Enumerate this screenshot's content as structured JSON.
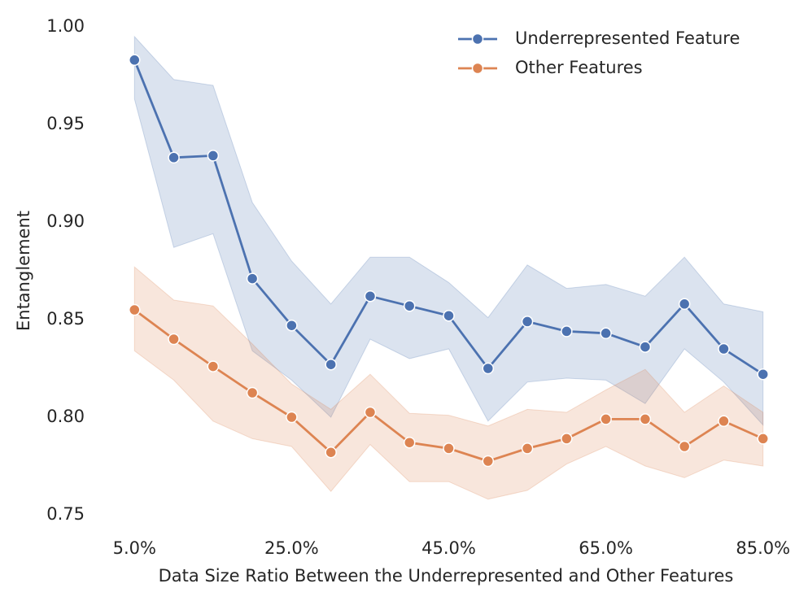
{
  "chart_data": {
    "type": "line",
    "x_label": "Data Size Ratio Between the Underrepresented and Other Features",
    "y_label": "Entanglement",
    "x": [
      5,
      10,
      15,
      20,
      25,
      30,
      35,
      40,
      45,
      50,
      55,
      60,
      65,
      70,
      75,
      80,
      85
    ],
    "xlim": [
      0,
      90
    ],
    "xticks": [
      {
        "value": 5,
        "label": "5.0%"
      },
      {
        "value": 25,
        "label": "25.0%"
      },
      {
        "value": 45,
        "label": "45.0%"
      },
      {
        "value": 65,
        "label": "65.0%"
      },
      {
        "value": 85,
        "label": "85.0%"
      }
    ],
    "ylim": [
      0.74,
      1.005
    ],
    "yticks": [
      {
        "value": 0.75,
        "label": "0.75"
      },
      {
        "value": 0.8,
        "label": "0.80"
      },
      {
        "value": 0.85,
        "label": "0.85"
      },
      {
        "value": 0.9,
        "label": "0.90"
      },
      {
        "value": 0.95,
        "label": "0.95"
      },
      {
        "value": 1.0,
        "label": "1.00"
      }
    ],
    "grid": false,
    "legend": "upper right",
    "series": [
      {
        "name": "Underrepresented Feature",
        "color": "#4c72b0",
        "values": [
          0.983,
          0.933,
          0.934,
          0.871,
          0.847,
          0.827,
          0.862,
          0.857,
          0.852,
          0.825,
          0.849,
          0.844,
          0.843,
          0.836,
          0.858,
          0.835,
          0.822
        ],
        "upper": [
          0.995,
          0.973,
          0.97,
          0.91,
          0.88,
          0.858,
          0.882,
          0.882,
          0.869,
          0.851,
          0.878,
          0.866,
          0.868,
          0.862,
          0.882,
          0.858,
          0.854
        ],
        "lower": [
          0.963,
          0.887,
          0.894,
          0.834,
          0.819,
          0.8,
          0.84,
          0.83,
          0.835,
          0.798,
          0.818,
          0.82,
          0.819,
          0.807,
          0.835,
          0.818,
          0.796
        ]
      },
      {
        "name": "Other Features",
        "color": "#dd8452",
        "values": [
          0.855,
          0.84,
          0.826,
          0.8125,
          0.8,
          0.782,
          0.8025,
          0.787,
          0.784,
          0.7775,
          0.784,
          0.789,
          0.799,
          0.799,
          0.785,
          0.798,
          0.789
        ],
        "upper": [
          0.877,
          0.86,
          0.857,
          0.8375,
          0.817,
          0.804,
          0.822,
          0.802,
          0.801,
          0.7955,
          0.804,
          0.8025,
          0.814,
          0.8245,
          0.8025,
          0.816,
          0.8025
        ],
        "lower": [
          0.834,
          0.819,
          0.798,
          0.789,
          0.785,
          0.762,
          0.786,
          0.767,
          0.767,
          0.758,
          0.7625,
          0.776,
          0.785,
          0.775,
          0.769,
          0.778,
          0.775
        ]
      }
    ]
  }
}
